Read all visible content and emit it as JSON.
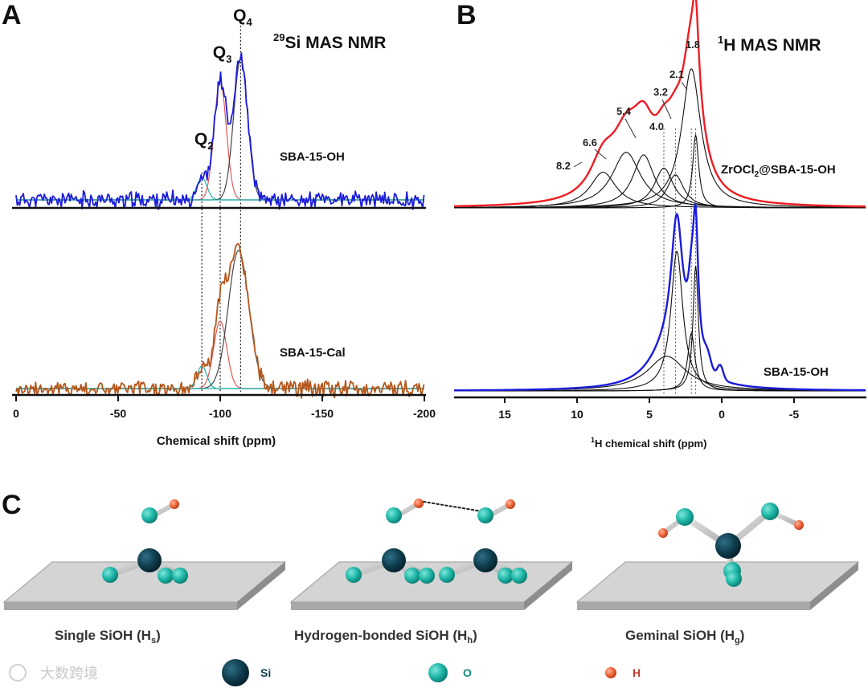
{
  "panels": {
    "a": "A",
    "b": "B",
    "c": "C"
  },
  "chart_data": [
    {
      "type": "line",
      "panel": "A",
      "title": "29Si MAS NMR",
      "title_parts": {
        "sup": "29",
        "main": "Si MAS NMR"
      },
      "xlabel": "Chemical shift (ppm)",
      "xlim": [
        0,
        -200
      ],
      "xticks": [
        0,
        -50,
        -100,
        -150,
        -200
      ],
      "xtick_labels": [
        "0",
        "-50",
        "-100",
        "-150",
        "-200"
      ],
      "peak_labels": [
        {
          "base": "Q",
          "sub": "2",
          "ppm": -91
        },
        {
          "base": "Q",
          "sub": "3",
          "ppm": -100
        },
        {
          "base": "Q",
          "sub": "4",
          "ppm": -110
        }
      ],
      "reference_lines_ppm": [
        -91,
        -100,
        -110
      ],
      "series": [
        {
          "name": "SBA-15-OH",
          "color": "#1c1cdb",
          "components": [
            {
              "color": "#20b2aa",
              "center": -91,
              "height": 0.14,
              "width": 2.5
            },
            {
              "color": "#e05a5a",
              "center": -100,
              "height": 0.74,
              "width": 3.0
            },
            {
              "color": "#444444",
              "center": -110,
              "height": 0.88,
              "width": 3.4
            }
          ]
        },
        {
          "name": "SBA-15-Cal",
          "color": "#b5561b",
          "components": [
            {
              "color": "#20b2aa",
              "center": -91,
              "height": 0.14,
              "width": 2.4
            },
            {
              "color": "#e05a5a",
              "center": -100,
              "height": 0.42,
              "width": 3.2
            },
            {
              "color": "#444444",
              "center": -109,
              "height": 0.86,
              "width": 5.0
            }
          ]
        }
      ]
    },
    {
      "type": "line",
      "panel": "B",
      "title": "1H MAS NMR",
      "title_parts": {
        "sup": "1",
        "main": "H MAS NMR"
      },
      "xlabel": "1H chemical shift (ppm)",
      "xlabel_parts": {
        "sup": "1",
        "main": "H chemical shift (ppm)"
      },
      "xlim": [
        18.5,
        -10
      ],
      "xticks": [
        15,
        10,
        5,
        0,
        -5
      ],
      "xtick_labels": [
        "15",
        "10",
        "5",
        "0",
        "-5"
      ],
      "peak_labels": [
        {
          "label": "1.8",
          "ppm": 1.8
        },
        {
          "label": "2.1",
          "ppm": 2.1
        },
        {
          "label": "3.2",
          "ppm": 3.2
        },
        {
          "label": "4.0",
          "ppm": 4.0
        },
        {
          "label": "5.4",
          "ppm": 5.4
        },
        {
          "label": "6.6",
          "ppm": 6.6
        },
        {
          "label": "8.2",
          "ppm": 8.2
        }
      ],
      "reference_lines_ppm": [
        4.0,
        3.2,
        2.1,
        1.8
      ],
      "series": [
        {
          "name": "ZrOCl2@SBA-15-OH",
          "name_parts": {
            "pre": "ZrOCl",
            "sub": "2",
            "post": "@SBA-15-OH"
          },
          "color": "#ee1d23",
          "components": [
            {
              "center": 8.2,
              "height": 0.27,
              "width": 1.1
            },
            {
              "center": 6.6,
              "height": 0.42,
              "width": 1.2
            },
            {
              "center": 5.4,
              "height": 0.4,
              "width": 0.9
            },
            {
              "center": 4.0,
              "height": 0.3,
              "width": 0.8
            },
            {
              "center": 3.2,
              "height": 0.25,
              "width": 0.7
            },
            {
              "center": 2.1,
              "height": 1.05,
              "width": 0.8
            },
            {
              "center": 1.8,
              "height": 0.55,
              "width": 0.25
            }
          ]
        },
        {
          "name": "SBA-15-OH",
          "color": "#1c1cdb",
          "components": [
            {
              "center": 3.8,
              "height": 0.36,
              "width": 1.6
            },
            {
              "center": 3.1,
              "height": 1.45,
              "width": 0.5
            },
            {
              "center": 2.1,
              "height": 0.6,
              "width": 0.3
            },
            {
              "center": 1.8,
              "height": 1.3,
              "width": 0.22
            }
          ],
          "shoulders": [
            {
              "center": 1.0,
              "height": 0.15,
              "width": 0.25
            },
            {
              "center": 0.1,
              "height": 0.14,
              "width": 0.2
            }
          ]
        }
      ]
    }
  ],
  "structures": {
    "single": {
      "base": "Single SiOH (H",
      "sub": "s",
      "end": ")"
    },
    "hbond": {
      "base": "Hydrogen-bonded SiOH (H",
      "sub": "h",
      "end": ")"
    },
    "geminal": {
      "base": "Geminal SiOH (H",
      "sub": "g",
      "end": ")"
    }
  },
  "legend": [
    {
      "label": "Si",
      "color": "#0d3b4c",
      "text_color": "#0d3b4c"
    },
    {
      "label": "O",
      "color": "#1fb7a8",
      "text_color": "#0f8e80"
    },
    {
      "label": "H",
      "color": "#f0663c",
      "text_color": "#c0392b"
    }
  ],
  "watermark": "大数跨境"
}
